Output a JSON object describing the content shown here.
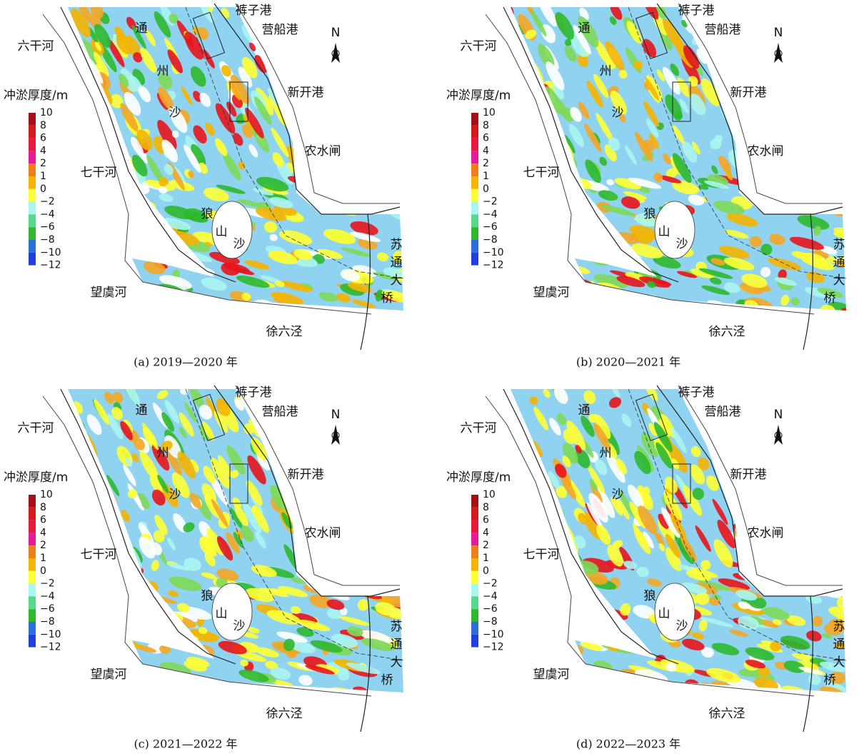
{
  "panels": [
    {
      "caption": "(a) 2019—2020 年"
    },
    {
      "caption": "(b) 2020—2021 年"
    },
    {
      "caption": "(c) 2021—2022 年"
    },
    {
      "caption": "(d) 2022—2023 年"
    }
  ],
  "places": [
    "裤子港",
    "营船港",
    "新开港",
    "农水闸",
    "六干河",
    "七干河",
    "望虞河",
    "徐六泾",
    "通",
    "州",
    "沙",
    "狼",
    "山",
    "沙",
    "苏",
    "通",
    "大",
    "桥"
  ],
  "north": "N",
  "legend": {
    "title": "冲淤厚度/m",
    "levels": [
      "10",
      "8",
      "6",
      "4",
      "2",
      "1",
      "0",
      "−2",
      "−4",
      "−6",
      "−8",
      "−10",
      "−12"
    ]
  }
}
